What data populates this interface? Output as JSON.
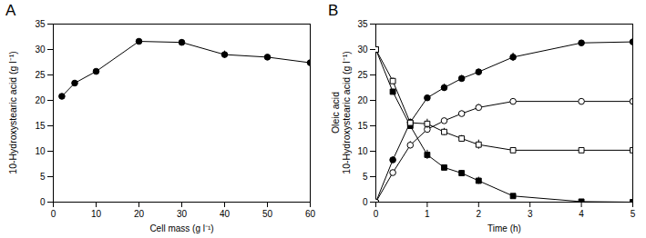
{
  "chart_data": [
    {
      "type": "line",
      "title": "A",
      "x_label": "Cell mass (g l⁻¹)",
      "y_label": "10-Hydroxystearic acid (g l⁻¹)",
      "x": [
        2,
        5,
        10,
        20,
        30,
        40,
        50,
        60
      ],
      "series": [
        {
          "color": "#000000",
          "marker": "circle",
          "values": [
            20.8,
            23.4,
            25.7,
            31.6,
            31.4,
            29.0,
            28.5,
            27.4
          ],
          "error": [
            0.3,
            0.3,
            0.3,
            0.4,
            0.5,
            0.7,
            0.3,
            0.3
          ]
        }
      ],
      "xlim": [
        0,
        60
      ],
      "xticks": [
        0,
        10,
        20,
        30,
        40,
        50,
        60
      ],
      "ylim": [
        0,
        35
      ],
      "yticks": [
        0,
        5,
        10,
        15,
        20,
        25,
        30,
        35
      ]
    },
    {
      "type": "line",
      "title": "B",
      "x_label": "Time (h)",
      "y_label": "Oleic acid\n10-Hydroxystearic acid (g l⁻¹)",
      "x": [
        0,
        0.33,
        0.67,
        1,
        1.33,
        1.67,
        2,
        2.67,
        4,
        5
      ],
      "series": [
        {
          "color": "#000000",
          "marker": "circle",
          "values": [
            0,
            8.3,
            15.7,
            20.5,
            22.5,
            24.3,
            25.6,
            28.5,
            31.3,
            31.5
          ],
          "error": [
            0.2,
            0.6,
            0.6,
            0.5,
            0.7,
            0.6,
            0.5,
            0.8,
            0.4,
            0.5
          ]
        },
        {
          "color": "#000000",
          "marker": "open_circle",
          "values": [
            0,
            5.8,
            11.2,
            14.3,
            16.0,
            17.4,
            18.6,
            19.8,
            19.8,
            19.8
          ],
          "error": [
            0.2,
            0.5,
            0.7,
            0.5,
            0.5,
            0.5,
            0.6,
            0.5,
            0.4,
            0.5
          ]
        },
        {
          "color": "#000000",
          "marker": "square",
          "values": [
            30.0,
            21.7,
            15.0,
            9.3,
            6.8,
            5.7,
            4.2,
            1.2,
            0.1,
            0
          ],
          "error": [
            0.3,
            0.5,
            0.6,
            0.9,
            0.5,
            0.5,
            0.7,
            0.4,
            0.2,
            0.2
          ]
        },
        {
          "color": "#000000",
          "marker": "open_square",
          "values": [
            30.0,
            23.8,
            15.6,
            15.4,
            13.8,
            12.5,
            11.3,
            10.2,
            10.2,
            10.2
          ],
          "error": [
            0.3,
            0.6,
            0.7,
            0.9,
            0.7,
            0.6,
            0.9,
            0.5,
            0.4,
            0.3
          ]
        }
      ],
      "xlim": [
        0,
        5
      ],
      "xticks": [
        0,
        1,
        2,
        3,
        4,
        5
      ],
      "ylim": [
        0,
        35
      ],
      "yticks": [
        0,
        5,
        10,
        15,
        20,
        25,
        30,
        35
      ]
    }
  ]
}
